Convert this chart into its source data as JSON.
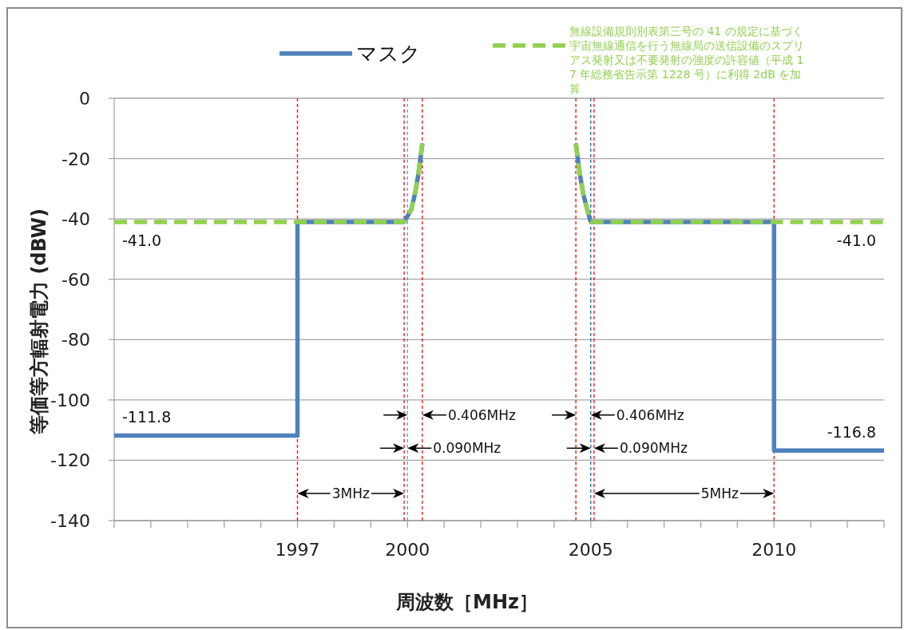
{
  "chart_data": {
    "type": "line",
    "xlabel": "周波数［MHz］",
    "ylabel": "等価等方輻射電力 (dBW)",
    "xlim": [
      1992,
      2013
    ],
    "xticks": [
      {
        "value": 1992,
        "label": null
      },
      {
        "value": 1993,
        "label": null
      },
      {
        "value": 1994,
        "label": null
      },
      {
        "value": 1995,
        "label": null
      },
      {
        "value": 1996,
        "label": null
      },
      1997,
      {
        "value": 1998,
        "label": null
      },
      {
        "value": 1999,
        "label": null
      },
      2000,
      {
        "value": 2001,
        "label": null
      },
      {
        "value": 2002,
        "label": null
      },
      {
        "value": 2003,
        "label": null
      },
      {
        "value": 2004,
        "label": null
      },
      2005,
      {
        "value": 2006,
        "label": null
      },
      {
        "value": 2007,
        "label": null
      },
      {
        "value": 2008,
        "label": null
      },
      {
        "value": 2009,
        "label": null
      },
      2010,
      {
        "value": 2011,
        "label": null
      },
      {
        "value": 2012,
        "label": null
      },
      {
        "value": 2013,
        "label": null
      }
    ],
    "ylim": [
      -140,
      0
    ],
    "yticks": [
      -140,
      -120,
      -100,
      -80,
      -60,
      -40,
      -20,
      0
    ],
    "grid": "y",
    "legend": "top",
    "series": [
      {
        "name": "マスク",
        "color": "#4f81bd",
        "line_style": "solid",
        "x": [
          1992,
          1997,
          1997,
          1999.91,
          2000.1,
          2000.2,
          2000.3,
          2000.406,
          null,
          2004.594,
          2004.7,
          2004.8,
          2004.93,
          2005.0,
          2010,
          2010,
          2013
        ],
        "values": [
          -111.8,
          -111.8,
          -41,
          -41,
          -37,
          -32,
          -25,
          -15,
          null,
          -15,
          -25,
          -32,
          -38,
          -41,
          -41,
          -116.8,
          -116.8
        ]
      },
      {
        "name": "無線設備規則別表第三号の 41 の規定に基づく宇宙無線通信を行う無線局の送信設備のスプリアス発射又は不要発射の強度の許容値（平成 17 年総務省告示第 1228 号）に利得 2dB を加算",
        "color": "#92d050",
        "line_style": "dashed",
        "x": [
          1992,
          1999.91,
          2000.1,
          2000.2,
          2000.3,
          2000.406,
          null,
          2004.594,
          2004.7,
          2004.8,
          2004.93,
          2005.0,
          2013
        ],
        "values": [
          -41,
          -41,
          -37,
          -32,
          -25,
          -15,
          null,
          -15,
          -25,
          -32,
          -38,
          -41,
          -41
        ]
      }
    ],
    "ref_lines": [
      {
        "axis": "x",
        "value": 1997,
        "color": "#ff0000",
        "line_style": "dashed"
      },
      {
        "axis": "x",
        "value": 1999.91,
        "color": "#ff0000",
        "line_style": "dashed"
      },
      {
        "axis": "x",
        "value": 2000.0,
        "color": "#5b9bd5",
        "line_style": "dashed"
      },
      {
        "axis": "x",
        "value": 2000.406,
        "color": "#ff0000",
        "line_style": "dashed"
      },
      {
        "axis": "x",
        "value": 2004.594,
        "color": "#ff0000",
        "line_style": "dashed"
      },
      {
        "axis": "x",
        "value": 2005.0,
        "color": "#0070c0",
        "line_style": "dashed"
      },
      {
        "axis": "x",
        "value": 2005.09,
        "color": "#ff0000",
        "line_style": "dashed"
      },
      {
        "axis": "x",
        "value": 2010,
        "color": "#ff0000",
        "line_style": "dashed"
      }
    ],
    "annotations": [
      {
        "text": "-41.0",
        "x": 1992,
        "y": -41
      },
      {
        "text": "-41.0",
        "x": 2013,
        "y": -41
      },
      {
        "text": "-111.8",
        "x": 1992,
        "y": -111.8
      },
      {
        "text": "-116.8",
        "x": 2013,
        "y": -116.8
      },
      {
        "text": "3MHz",
        "x": 1997,
        "y": -131
      },
      {
        "text": "0.406MHz",
        "x": 2000.0,
        "y": -105
      },
      {
        "text": "0.090MHz",
        "x": 1999.91,
        "y": -116
      },
      {
        "text": "0.406MHz",
        "x": 2005.0,
        "y": -105
      },
      {
        "text": "0.090MHz",
        "x": 2005.09,
        "y": -116
      },
      {
        "text": "5MHz",
        "x": 2010,
        "y": -131
      }
    ]
  }
}
